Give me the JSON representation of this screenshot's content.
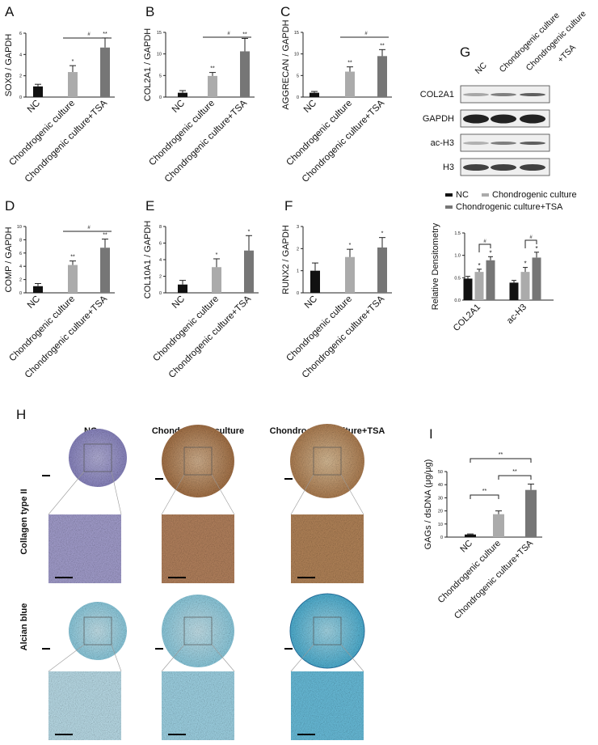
{
  "colors": {
    "nc": "#111111",
    "chondrogenic": "#ababab",
    "chondrogenic_tsa": "#767676"
  },
  "groups": [
    "NC",
    "Chondrogenic culture",
    "Chondrogenic culture+TSA"
  ],
  "chart_data": [
    {
      "panel": "A",
      "type": "bar",
      "ylabel": "SOX9 / GAPDH",
      "ylim": [
        0,
        6
      ],
      "ticks": [
        "0",
        "2",
        "4",
        "6"
      ],
      "categories": [
        "NC",
        "Chondrogenic culture",
        "Chondrogenic culture+TSA"
      ],
      "values": [
        1.0,
        2.35,
        4.65
      ],
      "errors": [
        0.2,
        0.6,
        0.9
      ],
      "marks": [
        "",
        "*",
        "**"
      ],
      "bracket": {
        "from": 1,
        "to": 2,
        "label": "#"
      }
    },
    {
      "panel": "B",
      "type": "bar",
      "ylabel": "COL2A1 / GAPDH",
      "ylim": [
        0,
        15
      ],
      "ticks": [
        "0",
        "5",
        "10",
        "15"
      ],
      "categories": [
        "NC",
        "Chondrogenic culture",
        "Chondrogenic culture+TSA"
      ],
      "values": [
        1.0,
        4.9,
        10.6
      ],
      "errors": [
        0.5,
        0.8,
        3.0
      ],
      "marks": [
        "",
        "**",
        "**"
      ],
      "bracket": {
        "from": 1,
        "to": 2,
        "label": "#"
      }
    },
    {
      "panel": "C",
      "type": "bar",
      "ylabel": "AGGRECAN / GAPDH",
      "ylim": [
        0,
        15
      ],
      "ticks": [
        "0",
        "5",
        "10",
        "15"
      ],
      "categories": [
        "NC",
        "Chondrogenic culture",
        "Chondrogenic culture+TSA"
      ],
      "values": [
        1.0,
        5.9,
        9.5
      ],
      "errors": [
        0.3,
        1.1,
        1.5
      ],
      "marks": [
        "",
        "**",
        "**"
      ],
      "bracket": {
        "from": 1,
        "to": 2,
        "label": "#"
      }
    },
    {
      "panel": "D",
      "type": "bar",
      "ylabel": "COMP / GAPDH",
      "ylim": [
        0,
        10
      ],
      "ticks": [
        "0",
        "2",
        "4",
        "6",
        "8",
        "10"
      ],
      "categories": [
        "NC",
        "Chondrogenic culture",
        "Chondrogenic culture+TSA"
      ],
      "values": [
        1.0,
        4.2,
        6.8
      ],
      "errors": [
        0.4,
        0.6,
        1.3
      ],
      "marks": [
        "",
        "**",
        "**"
      ],
      "bracket": {
        "from": 1,
        "to": 2,
        "label": "#"
      }
    },
    {
      "panel": "E",
      "type": "bar",
      "ylabel": "COL10A1 / GAPDH",
      "ylim": [
        0,
        8
      ],
      "ticks": [
        "0",
        "2",
        "4",
        "6",
        "8"
      ],
      "categories": [
        "NC",
        "Chondrogenic culture",
        "Chondrogenic culture+TSA"
      ],
      "values": [
        1.0,
        3.1,
        5.1
      ],
      "errors": [
        0.5,
        1.0,
        1.8
      ],
      "marks": [
        "",
        "*",
        "*"
      ]
    },
    {
      "panel": "F",
      "type": "bar",
      "ylabel": "RUNX2 / GAPDH",
      "ylim": [
        0,
        3
      ],
      "ticks": [
        "0",
        "1",
        "2",
        "3"
      ],
      "categories": [
        "NC",
        "Chondrogenic culture",
        "Chondrogenic culture+TSA"
      ],
      "values": [
        1.0,
        1.62,
        2.05
      ],
      "errors": [
        0.35,
        0.35,
        0.45
      ],
      "marks": [
        "",
        "*",
        "*"
      ]
    },
    {
      "panel": "G",
      "type": "bar",
      "ylabel": "Relative Densitometry",
      "ylim": [
        0,
        1.5
      ],
      "ticks": [
        "0.0",
        "0.5",
        "1.0",
        "1.5"
      ],
      "categories": [
        "COL2A1",
        "ac-H3"
      ],
      "legend": [
        "NC",
        "Chondrogenic culture",
        "Chondrogenic culture+TSA"
      ],
      "legend_position": "top",
      "series": [
        {
          "name": "NC",
          "values": [
            0.48,
            0.39
          ],
          "errors": [
            0.05,
            0.05
          ],
          "marks": [
            "",
            ""
          ]
        },
        {
          "name": "Chondrogenic culture",
          "values": [
            0.63,
            0.63
          ],
          "errors": [
            0.06,
            0.1
          ],
          "marks": [
            "*",
            "*"
          ]
        },
        {
          "name": "Chondrogenic culture+TSA",
          "values": [
            0.89,
            0.95
          ],
          "errors": [
            0.08,
            0.12
          ],
          "marks": [
            "*",
            "*"
          ]
        }
      ],
      "brackets": [
        {
          "category": 0,
          "label": "#"
        },
        {
          "category": 1,
          "label": "#"
        }
      ]
    },
    {
      "panel": "I",
      "type": "bar",
      "ylabel": "GAGs / dsDNA (μg/μg)",
      "ylim": [
        0,
        50
      ],
      "ticks": [
        "0",
        "10",
        "20",
        "30",
        "40",
        "50"
      ],
      "categories": [
        "NC",
        "Chondrogenic culture",
        "Chondrogenic culture+TSA"
      ],
      "values": [
        2.0,
        17.5,
        36.0
      ],
      "errors": [
        0.4,
        2.5,
        4.5
      ],
      "marks": [
        "",
        "",
        ""
      ],
      "brackets": [
        {
          "from": 0,
          "to": 1,
          "label": "**"
        },
        {
          "from": 1,
          "to": 2,
          "label": "**"
        },
        {
          "from": 0,
          "to": 2,
          "label": "**"
        }
      ]
    }
  ],
  "western_blot": {
    "panel": "G",
    "lanes": [
      "NC",
      "Chondrogenic culture",
      "Chondrogenic culture",
      "+TSA"
    ],
    "rows": [
      "COL2A1",
      "GAPDH",
      "ac-H3",
      "H3"
    ]
  },
  "histology": {
    "panel": "H",
    "columns": [
      "NC",
      "Chondrogenic culture",
      "Chondrogenic culture+TSA"
    ],
    "rows": [
      "Collagen type II",
      "Alcian blue"
    ]
  }
}
